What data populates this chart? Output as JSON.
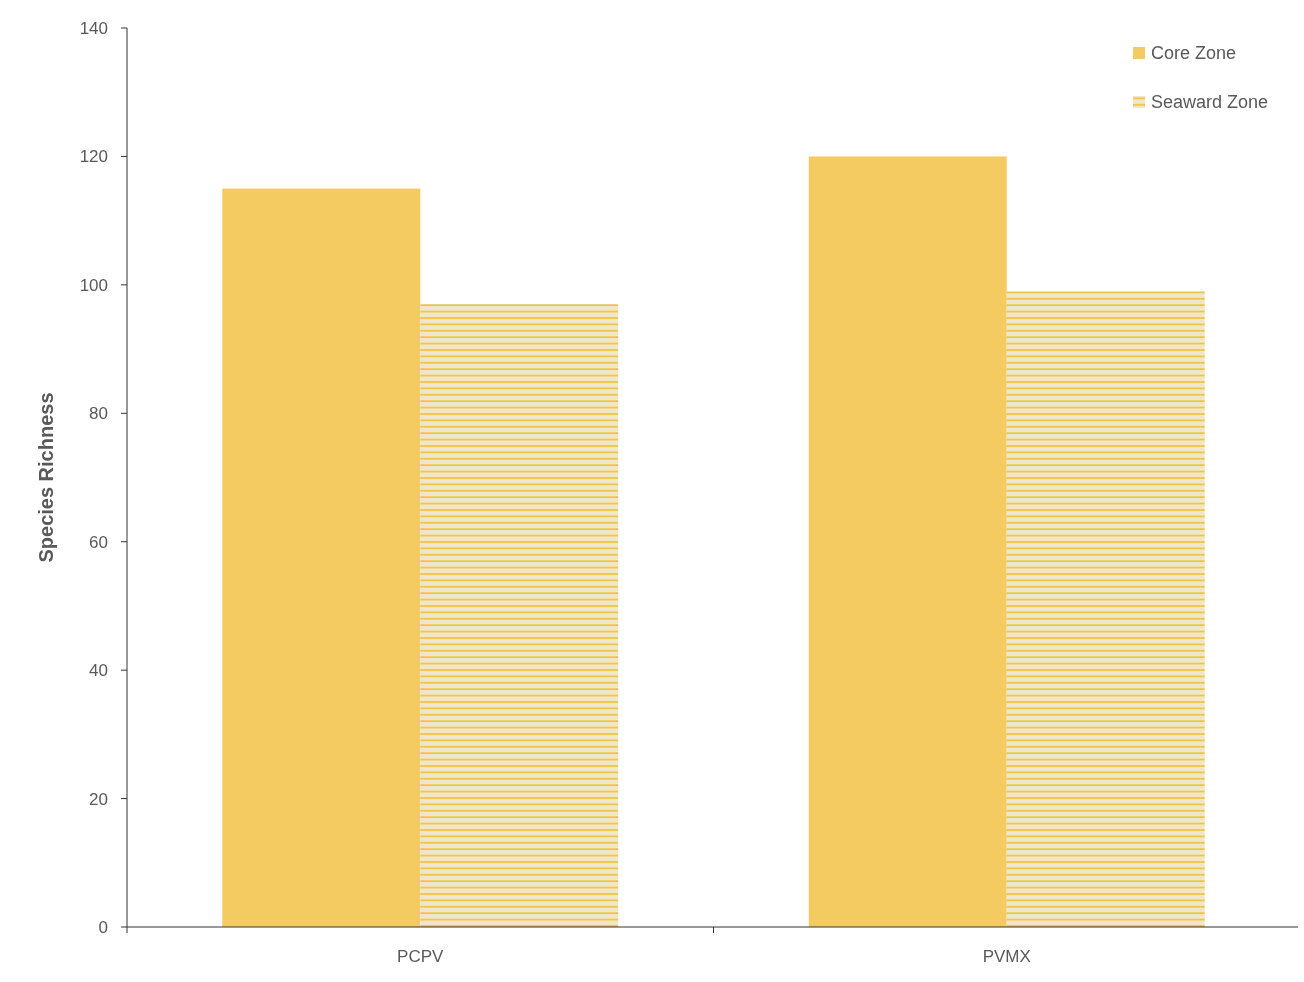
{
  "chart_data": {
    "type": "bar",
    "ylabel": "Species Richness",
    "categories": [
      "PCPV",
      "PVMX"
    ],
    "series": [
      {
        "name": "Core Zone",
        "color": "#f4cb61",
        "values": [
          115,
          120
        ]
      },
      {
        "name": "Seaward Zone",
        "color": "#f2c037",
        "values": [
          97,
          99
        ]
      }
    ],
    "ylim": [
      0,
      140
    ],
    "yticks": [
      0,
      20,
      40,
      60,
      80,
      100,
      120,
      140
    ],
    "grid": false,
    "legend": "top right"
  }
}
